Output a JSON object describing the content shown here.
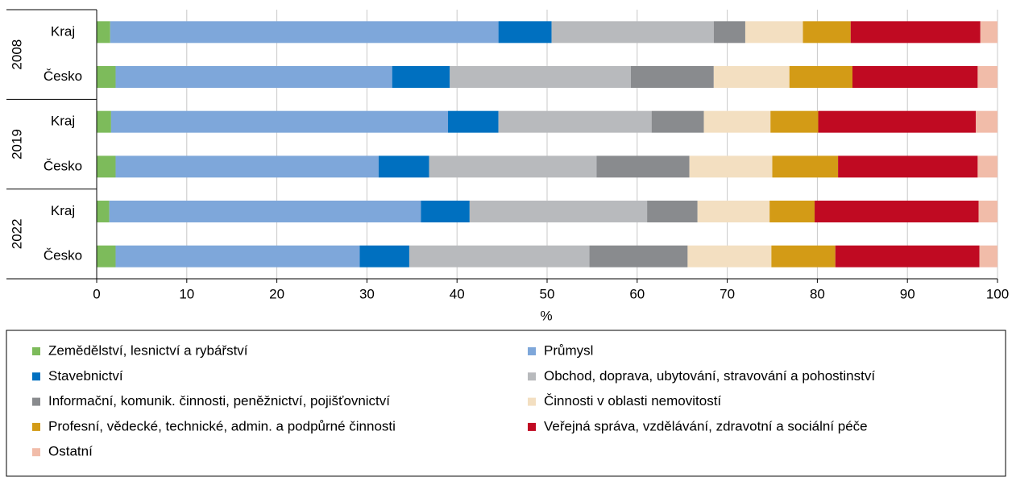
{
  "chart_data": {
    "type": "stacked-barh",
    "groups": [
      "2008",
      "2019",
      "2022"
    ],
    "categories": [
      "Kraj",
      "Česko",
      "Kraj",
      "Česko",
      "Kraj",
      "Česko"
    ],
    "x_label": "%",
    "xlim": [
      0,
      100
    ],
    "xticks": [
      0,
      10,
      20,
      30,
      40,
      50,
      60,
      70,
      80,
      90,
      100
    ],
    "grid": true,
    "series": [
      {
        "name": "Zemědělství, lesnictví a rybářství",
        "color": "#7dbb5b",
        "values": [
          1.5,
          2.1,
          1.6,
          2.1,
          1.4,
          2.1
        ]
      },
      {
        "name": "Průmysl",
        "color": "#7ea7da",
        "values": [
          43.1,
          30.7,
          37.4,
          29.2,
          34.6,
          27.1
        ]
      },
      {
        "name": "Stavebnictví",
        "color": "#0070c0",
        "values": [
          5.9,
          6.4,
          5.6,
          5.6,
          5.4,
          5.5
        ]
      },
      {
        "name": "Obchod, doprava, ubytování, stravování a pohostinství",
        "color": "#b8babd",
        "values": [
          18.0,
          20.1,
          17.0,
          18.6,
          19.7,
          20.0
        ]
      },
      {
        "name": "Informační, komunik. činnosti, peněžnictví, pojišťovnictví",
        "color": "#898b8e",
        "values": [
          3.5,
          9.2,
          5.8,
          10.3,
          5.6,
          10.9
        ]
      },
      {
        "name": "Činnosti v oblasti nemovitostí",
        "color": "#f3dfc1",
        "values": [
          6.4,
          8.4,
          7.4,
          9.2,
          8.0,
          9.3
        ]
      },
      {
        "name": "Profesní, vědecké, technické, admin. a podpůrné činnosti",
        "color": "#d39b16",
        "values": [
          5.3,
          7.0,
          5.3,
          7.3,
          5.0,
          7.1
        ]
      },
      {
        "name": "Veřejná správa, vzdělávání, zdravotní a sociální péče",
        "color": "#c00a22",
        "values": [
          14.4,
          13.9,
          17.5,
          15.5,
          18.2,
          16.0
        ]
      },
      {
        "name": "Ostatní",
        "color": "#f1bca9",
        "values": [
          1.9,
          2.2,
          2.4,
          2.2,
          2.1,
          2.0
        ]
      }
    ]
  }
}
